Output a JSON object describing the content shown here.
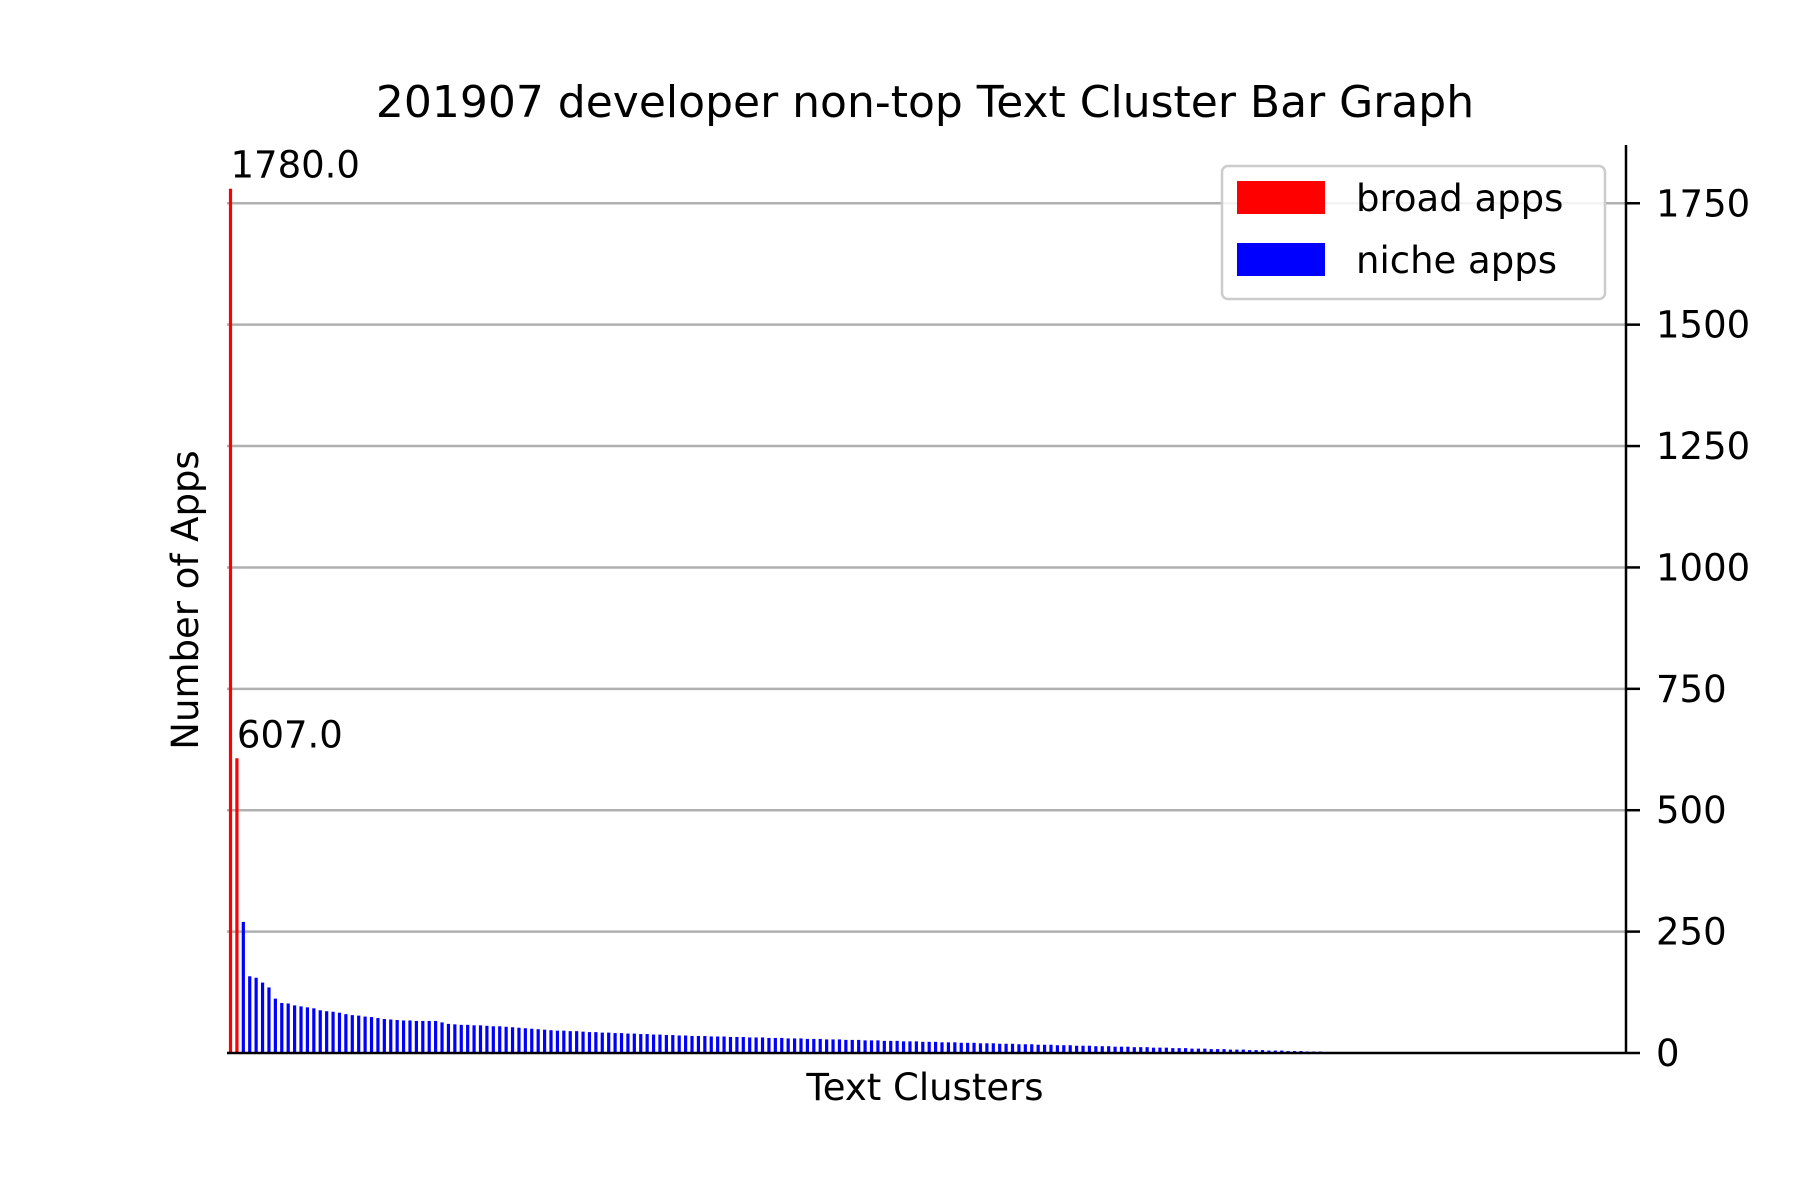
{
  "chart_data": {
    "type": "bar",
    "title": "201907 developer non-top Text Cluster Bar Graph",
    "xlabel": "Text Clusters",
    "ylabel": "Number of Apps",
    "ylim": [
      0,
      1870
    ],
    "yticks": [
      0,
      250,
      500,
      750,
      1000,
      1250,
      1500,
      1750
    ],
    "y_axis_side": "right",
    "grid": "horizontal",
    "legend": {
      "position": "top-right",
      "entries": [
        {
          "label": "broad apps",
          "color": "#ff0000"
        },
        {
          "label": "niche apps",
          "color": "#0000ff"
        }
      ]
    },
    "series": [
      {
        "name": "broad apps",
        "color": "#ff0000",
        "values": [
          1780,
          607
        ]
      },
      {
        "name": "niche apps",
        "color": "#0000ff",
        "values": [
          270,
          158,
          155,
          145,
          135,
          112,
          103,
          102,
          98,
          96,
          94,
          92,
          88,
          86,
          85,
          83,
          80,
          78,
          77,
          75,
          74,
          72,
          70,
          69,
          68,
          67,
          67,
          66,
          66,
          66,
          66,
          63,
          60,
          59,
          58,
          58,
          57,
          57,
          56,
          55,
          55,
          54,
          53,
          52,
          51,
          50,
          49,
          48,
          47,
          46,
          46,
          45,
          45,
          44,
          43,
          43,
          42,
          42,
          41,
          41,
          40,
          40,
          39,
          39,
          38,
          38,
          37,
          37,
          36,
          36,
          35,
          35,
          35,
          34,
          34,
          34,
          33,
          33,
          33,
          32,
          32,
          32,
          31,
          31,
          31,
          30,
          30,
          30,
          29,
          29,
          29,
          28,
          28,
          28,
          27,
          27,
          27,
          26,
          26,
          26,
          25,
          25,
          25,
          24,
          24,
          24,
          23,
          23,
          23,
          22,
          22,
          22,
          21,
          21,
          21,
          20,
          20,
          20,
          19,
          19,
          19,
          18,
          18,
          18,
          17,
          17,
          17,
          16,
          16,
          16,
          15,
          15,
          15,
          14,
          14,
          14,
          13,
          13,
          13,
          12,
          12,
          12,
          11,
          11,
          11,
          10,
          10,
          10,
          9,
          9,
          9,
          8,
          8,
          8,
          7,
          7,
          7,
          6,
          6,
          6,
          5,
          5,
          5,
          4,
          4,
          4,
          3,
          3,
          3,
          2,
          2,
          2,
          1,
          1,
          1,
          1,
          1,
          1
        ]
      }
    ],
    "data_labels": [
      "1780.0",
      "607.0"
    ]
  }
}
